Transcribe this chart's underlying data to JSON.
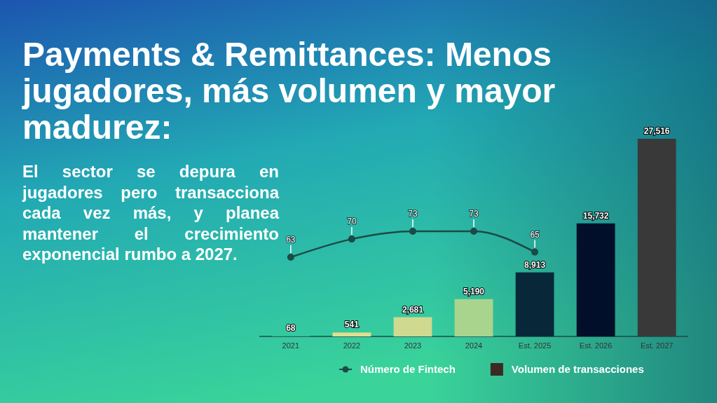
{
  "chart_data": {
    "type": "bar",
    "title": "Payments & Remittances: Menos jugadores, más volumen y mayor madurez:",
    "annotations": [
      "El sector se depura en jugadores pero transacciona cada vez más, y planea mantener el crecimiento exponencial rumbo a 2027."
    ],
    "categories": [
      "2021",
      "2022",
      "2023",
      "2024",
      "Est. 2025",
      "Est. 2026",
      "Est. 2027"
    ],
    "series": [
      {
        "name": "Volumen de transacciones",
        "color": "#3a2a22",
        "colors": [
          "#3ccf98",
          "#e3de8e",
          "#cfd990",
          "#a9d48d",
          "#08283a",
          "#020f2a",
          "#393939"
        ],
        "values": [
          68,
          541,
          2681,
          5190,
          8913,
          15732,
          27516
        ],
        "value_labels": [
          "68",
          "541",
          "2,681",
          "5,190",
          "8,913",
          "15,732",
          "27,516"
        ]
      },
      {
        "name": "Número de Fintech",
        "type": "line",
        "axis": "y2",
        "color": "#1c4a46",
        "values": [
          63,
          70,
          73,
          73,
          65,
          null,
          null
        ]
      }
    ],
    "data_labels": true,
    "marker": "circle",
    "legend": "bottom"
  }
}
